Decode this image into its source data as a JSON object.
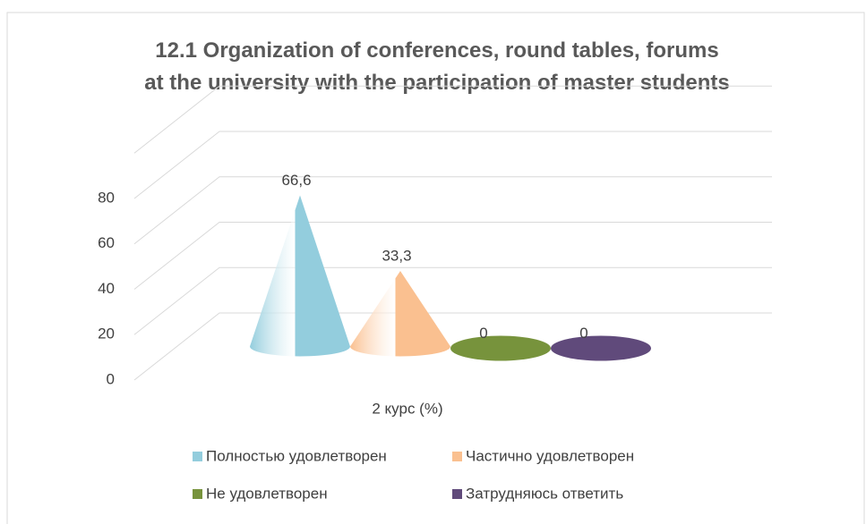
{
  "chart_data": {
    "type": "cone",
    "title": "12.1 Organization of conferences, round tables, forums at the university with the participation of master students",
    "categories": [
      "2 курс (%)"
    ],
    "series": [
      {
        "name": "Полностью удовлетворен",
        "color": "#93cddd",
        "values": [
          66.6
        ],
        "value_labels": [
          "66,6"
        ]
      },
      {
        "name": "Частично удовлетворен",
        "color": "#fac090",
        "values": [
          33.3
        ],
        "value_labels": [
          "33,3"
        ]
      },
      {
        "name": "Не удовлетворен",
        "color": "#77933c",
        "values": [
          0
        ],
        "value_labels": [
          "0"
        ]
      },
      {
        "name": "Затрудняюсь ответить",
        "color": "#604a7b",
        "values": [
          0
        ],
        "value_labels": [
          "0"
        ]
      }
    ],
    "ylim": [
      0,
      100
    ],
    "yticks": [
      0,
      20,
      40,
      60,
      80
    ],
    "grid": true,
    "legend": "bottom"
  }
}
